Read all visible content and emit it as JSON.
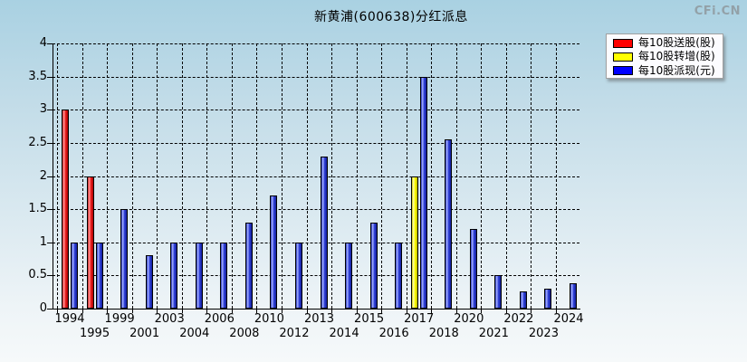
{
  "watermark": "CFi.CN",
  "chart_data": {
    "type": "bar",
    "title": "新黄浦(600638)分红派息",
    "categories": [
      "1994",
      "1995",
      "1999",
      "2001",
      "2003",
      "2004",
      "2006",
      "2008",
      "2010",
      "2012",
      "2013",
      "2014",
      "2015",
      "2016",
      "2017",
      "2018",
      "2020",
      "2021",
      "2022",
      "2023",
      "2024"
    ],
    "series": [
      {
        "name": "每10股送股(股)",
        "color": "#ff0000",
        "color_key": "red",
        "values": [
          3,
          2,
          0,
          0,
          0,
          0,
          0,
          0,
          0,
          0,
          0,
          0,
          0,
          0,
          0,
          0,
          0,
          0,
          0,
          0,
          0
        ]
      },
      {
        "name": "每10股转增(股)",
        "color": "#ffff00",
        "color_key": "yellow",
        "values": [
          0,
          0,
          0,
          0,
          0,
          0,
          0,
          0,
          0,
          0,
          0,
          0,
          0,
          0,
          2,
          0,
          0,
          0,
          0,
          0,
          0
        ]
      },
      {
        "name": "每10股派现(元)",
        "color": "#0000ff",
        "color_key": "blue",
        "values": [
          1,
          1,
          1.5,
          0.8,
          1,
          1,
          1,
          1.3,
          1.7,
          1,
          2.3,
          1,
          1.3,
          1,
          3.5,
          2.55,
          1.2,
          0.5,
          0.26,
          0.3,
          0.38
        ]
      }
    ],
    "xlabel": "",
    "ylabel": "",
    "ylim": [
      0,
      4
    ],
    "y_ticks": [
      "0",
      "0.5",
      "1",
      "1.5",
      "2",
      "2.5",
      "3",
      "3.5",
      "4"
    ],
    "grid": true,
    "legend_position": "top-right"
  },
  "colors": {
    "background_top": "#a9d1e2",
    "background_bottom": "#f6f9fa",
    "grid": "#000000",
    "watermark": "#93a1a8",
    "legend_background": "#fcfcff"
  }
}
